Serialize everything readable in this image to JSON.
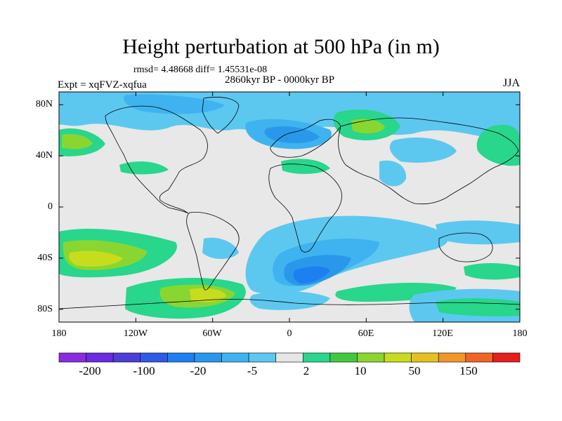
{
  "title": "Height perturbation at 500 hPa (in m)",
  "stats": "rmsd= 4.48668 diff= 1.45531e-08",
  "period": "2860kyr BP - 0000kyr BP",
  "experiment": "Expt = xqFVZ-xqfua",
  "season": "JJA",
  "y_axis": {
    "ticks": [
      {
        "label": "80N",
        "lat": 80
      },
      {
        "label": "40N",
        "lat": 40
      },
      {
        "label": "0",
        "lat": 0
      },
      {
        "label": "40S",
        "lat": -40
      },
      {
        "label": "80S",
        "lat": -80
      }
    ]
  },
  "x_axis": {
    "ticks": [
      {
        "label": "180",
        "lon": -180
      },
      {
        "label": "120W",
        "lon": -120
      },
      {
        "label": "60W",
        "lon": -60
      },
      {
        "label": "0",
        "lon": 0
      },
      {
        "label": "60E",
        "lon": 60
      },
      {
        "label": "120E",
        "lon": 120
      },
      {
        "label": "180",
        "lon": 180
      }
    ]
  },
  "colorbar": {
    "colors": [
      "#8a2be2",
      "#6a2ae0",
      "#4b3fd6",
      "#2f5ae6",
      "#1e7ff0",
      "#2a98ea",
      "#3fb3f0",
      "#5cc8f0",
      "#e6e6e6",
      "#28d68c",
      "#42c840",
      "#8ad630",
      "#c8dc1e",
      "#e6c020",
      "#f0962a",
      "#f0642a",
      "#e61e1e"
    ],
    "labels": [
      "-200",
      "-100",
      "-20",
      "-5",
      "2",
      "10",
      "50",
      "150"
    ]
  }
}
